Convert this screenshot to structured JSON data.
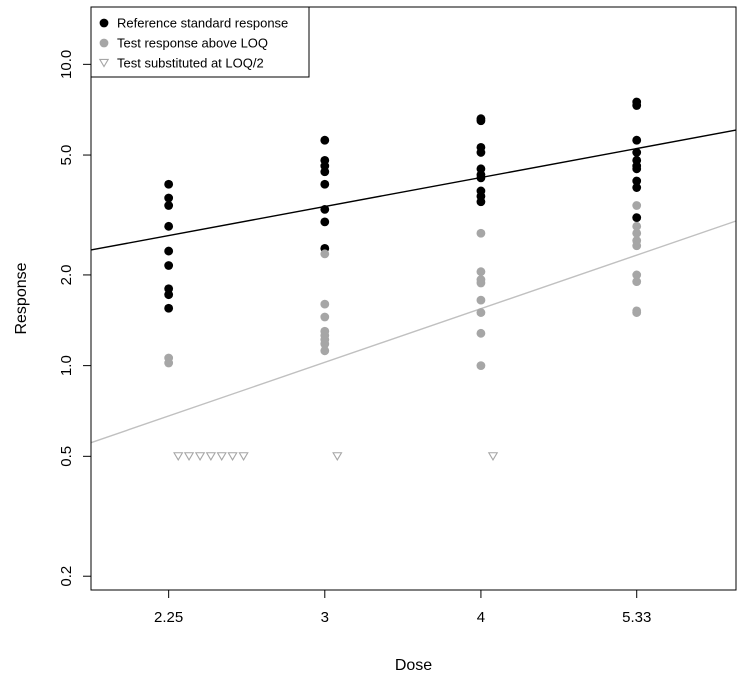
{
  "chart_data": {
    "type": "scatter",
    "xlabel": "Dose",
    "ylabel": "Response",
    "x_scale": "log",
    "y_scale": "log",
    "xlim": [
      1.95,
      6.4
    ],
    "ylim": [
      0.18,
      15.5
    ],
    "x_ticks": [
      2.25,
      3,
      4,
      5.33
    ],
    "x_tick_labels": [
      "2.25",
      "3",
      "4",
      "5.33"
    ],
    "y_ticks": [
      0.2,
      0.5,
      1.0,
      2.0,
      5.0,
      10.0
    ],
    "y_tick_labels": [
      "0.2",
      "0.5",
      "1.0",
      "2.0",
      "5.0",
      "10.0"
    ],
    "grid": false,
    "legend_position": "top-left",
    "series": [
      {
        "name": "Reference standard response",
        "marker": "filled-circle",
        "color": "#000000",
        "points": [
          [
            2.25,
            4.0
          ],
          [
            2.25,
            3.6
          ],
          [
            2.25,
            3.4
          ],
          [
            2.25,
            2.9
          ],
          [
            2.25,
            2.4
          ],
          [
            2.25,
            2.15
          ],
          [
            2.25,
            1.8
          ],
          [
            2.25,
            1.72
          ],
          [
            2.25,
            1.55
          ],
          [
            3,
            5.6
          ],
          [
            3,
            4.8
          ],
          [
            3,
            4.6
          ],
          [
            3,
            4.4
          ],
          [
            3,
            4.0
          ],
          [
            3,
            3.3
          ],
          [
            3,
            3.0
          ],
          [
            3,
            2.45
          ],
          [
            4,
            6.6
          ],
          [
            4,
            6.5
          ],
          [
            4,
            5.3
          ],
          [
            4,
            5.1
          ],
          [
            4,
            4.5
          ],
          [
            4,
            4.3
          ],
          [
            4,
            4.2
          ],
          [
            4,
            3.8
          ],
          [
            4,
            3.65
          ],
          [
            4,
            3.5
          ],
          [
            5.33,
            7.5
          ],
          [
            5.33,
            7.3
          ],
          [
            5.33,
            5.6
          ],
          [
            5.33,
            5.1
          ],
          [
            5.33,
            4.8
          ],
          [
            5.33,
            4.6
          ],
          [
            5.33,
            4.5
          ],
          [
            5.33,
            4.1
          ],
          [
            5.33,
            3.9
          ],
          [
            5.33,
            3.1
          ]
        ]
      },
      {
        "name": "Test response above LOQ",
        "marker": "filled-circle",
        "color": "#a6a6a6",
        "points": [
          [
            2.25,
            1.06
          ],
          [
            2.25,
            1.02
          ],
          [
            3,
            2.35
          ],
          [
            3,
            1.6
          ],
          [
            3,
            1.45
          ],
          [
            3,
            1.3
          ],
          [
            3,
            1.26
          ],
          [
            3,
            1.22
          ],
          [
            3,
            1.18
          ],
          [
            3,
            1.12
          ],
          [
            4,
            2.75
          ],
          [
            4,
            2.05
          ],
          [
            4,
            1.93
          ],
          [
            4,
            1.88
          ],
          [
            4,
            1.65
          ],
          [
            4,
            1.5
          ],
          [
            4,
            1.28
          ],
          [
            4,
            1.0
          ],
          [
            5.33,
            3.4
          ],
          [
            5.33,
            2.9
          ],
          [
            5.33,
            2.75
          ],
          [
            5.33,
            2.6
          ],
          [
            5.33,
            2.5
          ],
          [
            5.33,
            2.0
          ],
          [
            5.33,
            1.9
          ],
          [
            5.33,
            1.52
          ],
          [
            5.33,
            1.5
          ]
        ]
      },
      {
        "name": "Test substituted at LOQ/2",
        "marker": "open-triangle-down",
        "color": "#a6a6a6",
        "points": [
          [
            2.29,
            0.5
          ],
          [
            2.336,
            0.5
          ],
          [
            2.384,
            0.5
          ],
          [
            2.432,
            0.5
          ],
          [
            2.481,
            0.5
          ],
          [
            2.531,
            0.5
          ],
          [
            2.583,
            0.5
          ],
          [
            3.07,
            0.5
          ],
          [
            4.09,
            0.5
          ]
        ]
      }
    ],
    "fit_lines": [
      {
        "color": "#000000",
        "x": [
          1.95,
          6.4
        ],
        "y": [
          2.42,
          6.05
        ]
      },
      {
        "color": "#c0c0c0",
        "x": [
          1.95,
          6.4
        ],
        "y": [
          0.555,
          3.02
        ]
      }
    ]
  }
}
